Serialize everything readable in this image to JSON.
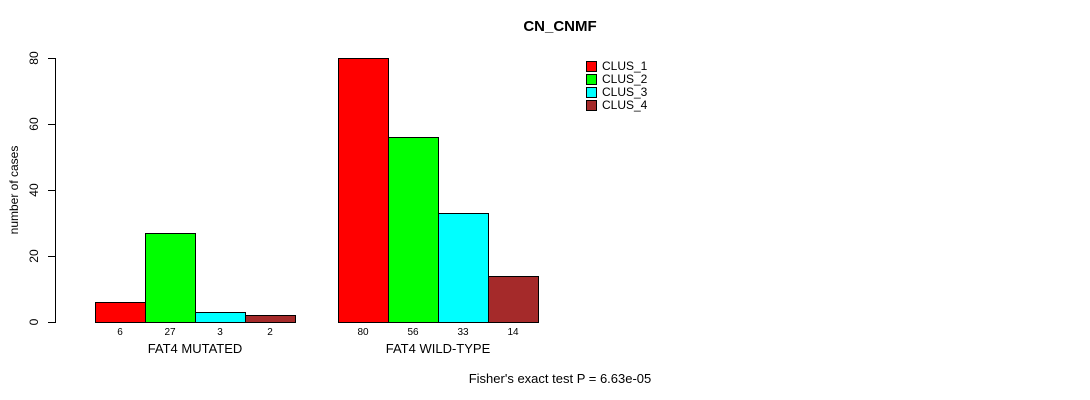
{
  "chart_data": {
    "type": "bar",
    "title": "CN_CNMF",
    "xlabel": "",
    "ylabel": "number of cases",
    "ylim": [
      0,
      80
    ],
    "yticks": [
      0,
      20,
      40,
      60,
      80
    ],
    "grid": false,
    "legend_position": "top-right",
    "categories": [
      "FAT4 MUTATED",
      "FAT4 WILD-TYPE"
    ],
    "groups": [
      {
        "label": "FAT4 MUTATED",
        "values": [
          6,
          27,
          3,
          2
        ]
      },
      {
        "label": "FAT4 WILD-TYPE",
        "values": [
          80,
          56,
          33,
          14
        ]
      }
    ],
    "series": [
      {
        "name": "CLUS_1",
        "color": "#FF0000",
        "values": [
          6,
          80
        ]
      },
      {
        "name": "CLUS_2",
        "color": "#00FF00",
        "values": [
          27,
          56
        ]
      },
      {
        "name": "CLUS_3",
        "color": "#00FFFF",
        "values": [
          3,
          33
        ]
      },
      {
        "name": "CLUS_4",
        "color": "#A52A2A",
        "values": [
          2,
          14
        ]
      }
    ],
    "legend": [
      {
        "label": "CLUS_1",
        "color": "#FF0000"
      },
      {
        "label": "CLUS_2",
        "color": "#00FF00"
      },
      {
        "label": "CLUS_3",
        "color": "#00FFFF"
      },
      {
        "label": "CLUS_4",
        "color": "#A52A2A"
      }
    ],
    "annotation": "Fisher's exact test P = 6.63e-05",
    "axis_color": "#000000"
  }
}
